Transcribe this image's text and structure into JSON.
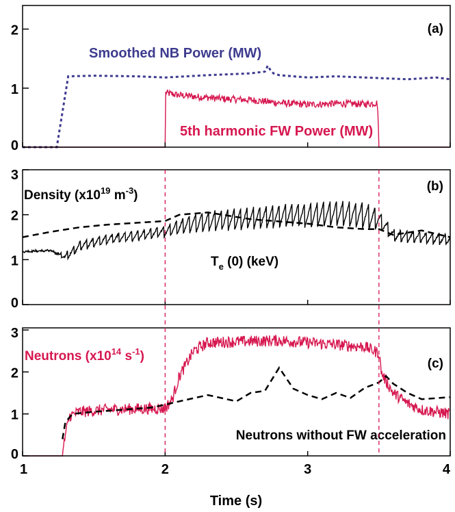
{
  "chart_data": {
    "type": "line",
    "shared_x": {
      "label": "Time (s)",
      "range": [
        1,
        4
      ],
      "ticks": [
        1,
        2,
        3,
        4
      ],
      "tick_labels": [
        "1",
        "2",
        "3",
        "4"
      ]
    },
    "panels": [
      {
        "id": "a",
        "tag": "(a)",
        "ylim": [
          0,
          2.4
        ],
        "yticks": [
          0,
          1,
          2
        ],
        "ytick_labels": [
          "0",
          "1",
          "2"
        ],
        "colors": {
          "nb": "#3d3b8e",
          "fw": "#d6174f"
        },
        "labels": {
          "nb": "Smoothed NB Power (MW)",
          "fw": "5th harmonic FW Power (MW)"
        },
        "series": [
          {
            "key": "nb",
            "style": "dotted",
            "x": [
              1.0,
              1.24,
              1.32,
              1.5,
              1.8,
              2.0,
              2.3,
              2.6,
              2.7,
              2.72,
              2.74,
              2.76,
              2.8,
              3.0,
              3.2,
              3.5,
              3.7,
              3.9,
              4.0
            ],
            "y": [
              0,
              0,
              1.2,
              1.21,
              1.2,
              1.18,
              1.22,
              1.25,
              1.28,
              1.38,
              1.3,
              1.25,
              1.22,
              1.18,
              1.2,
              1.17,
              1.15,
              1.18,
              1.15
            ]
          },
          {
            "key": "fw",
            "style": "noisy",
            "x": [
              1.0,
              2.0,
              2.001,
              2.1,
              2.2,
              2.4,
              2.6,
              2.8,
              3.0,
              3.2,
              3.4,
              3.49,
              3.5,
              4.0
            ],
            "y": [
              0,
              0,
              0.92,
              0.88,
              0.86,
              0.82,
              0.8,
              0.75,
              0.72,
              0.74,
              0.73,
              0.75,
              0,
              0
            ],
            "noise": 0.06
          }
        ]
      },
      {
        "id": "b",
        "tag": "(b)",
        "ylim": [
          0,
          3
        ],
        "yticks": [
          0,
          1,
          2,
          3
        ],
        "ytick_labels": [
          "0",
          "1",
          "2",
          "3"
        ],
        "labels": {
          "density_main": "Density (x10",
          "density_sup": "19",
          "density_unit": " m",
          "density_unit_sup": "-3",
          "density_close": ")",
          "te_main": "T",
          "te_sub": "e",
          "te_rest": " (0) (keV)"
        },
        "series": [
          {
            "key": "density",
            "style": "dashed",
            "x": [
              1.0,
              1.2,
              1.4,
              1.6,
              1.8,
              2.0,
              2.1,
              2.3,
              2.6,
              2.8,
              3.0,
              3.2,
              3.4,
              3.5,
              3.6,
              3.7,
              3.8,
              4.0
            ],
            "y": [
              1.5,
              1.62,
              1.72,
              1.78,
              1.82,
              1.86,
              2.0,
              2.05,
              1.9,
              1.85,
              1.8,
              1.72,
              1.68,
              1.68,
              1.55,
              1.6,
              1.65,
              1.5
            ]
          },
          {
            "key": "te",
            "style": "sawtooth",
            "base_x": [
              1.0,
              1.2,
              1.3,
              1.4,
              1.6,
              1.8,
              2.0,
              2.1,
              2.2,
              2.4,
              2.6,
              2.8,
              3.0,
              3.2,
              3.4,
              3.5,
              3.6,
              3.8,
              4.0
            ],
            "base_y": [
              1.18,
              1.2,
              1.05,
              1.3,
              1.45,
              1.52,
              1.62,
              1.72,
              1.8,
              1.86,
              1.9,
              1.95,
              2.0,
              2.05,
              2.0,
              1.9,
              1.55,
              1.5,
              1.45
            ],
            "amp_x": [
              1.0,
              1.25,
              1.3,
              2.0,
              2.2,
              3.0,
              3.45,
              3.5,
              3.6,
              4.0
            ],
            "amp_y": [
              0.02,
              0.03,
              0.2,
              0.25,
              0.45,
              0.55,
              0.6,
              0.4,
              0.28,
              0.25
            ],
            "period": 0.045
          }
        ]
      },
      {
        "id": "c",
        "tag": "(c)",
        "ylim": [
          0,
          3.05
        ],
        "yticks": [
          0,
          1,
          2,
          3
        ],
        "ytick_labels": [
          "0",
          "1",
          "2",
          "3"
        ],
        "colors": {
          "neutrons": "#d6174f"
        },
        "labels": {
          "neutrons_main": "Neutrons (x10",
          "neutrons_sup": "14",
          "neutrons_unit": " s",
          "neutrons_unit_sup": "-1",
          "neutrons_close": ")",
          "no_fw": "Neutrons without FW acceleration"
        },
        "series": [
          {
            "key": "neutrons",
            "style": "noisy",
            "x": [
              1.0,
              1.28,
              1.3,
              1.33,
              1.4,
              1.6,
              1.8,
              2.0,
              2.05,
              2.1,
              2.2,
              2.3,
              2.5,
              2.8,
              3.0,
              3.2,
              3.4,
              3.5,
              3.52,
              3.6,
              3.7,
              3.8,
              4.0
            ],
            "y": [
              0,
              0,
              0.5,
              0.95,
              1.05,
              1.1,
              1.12,
              1.13,
              1.35,
              1.9,
              2.5,
              2.7,
              2.72,
              2.75,
              2.7,
              2.65,
              2.6,
              2.45,
              1.95,
              1.5,
              1.25,
              1.1,
              1.0
            ],
            "noise": 0.14
          },
          {
            "key": "no_fw",
            "style": "dashed",
            "x": [
              1.28,
              1.3,
              1.35,
              1.5,
              1.7,
              1.9,
              2.0,
              2.1,
              2.3,
              2.5,
              2.6,
              2.7,
              2.8,
              2.9,
              3.0,
              3.1,
              3.2,
              3.3,
              3.4,
              3.5,
              3.55,
              3.6,
              3.7,
              3.8,
              4.0
            ],
            "y": [
              0.4,
              0.8,
              1.0,
              1.05,
              1.1,
              1.15,
              1.22,
              1.3,
              1.45,
              1.3,
              1.5,
              1.55,
              2.1,
              1.6,
              1.45,
              1.35,
              1.5,
              1.38,
              1.62,
              1.75,
              1.9,
              1.72,
              1.5,
              1.35,
              1.4
            ]
          }
        ]
      }
    ],
    "vertical_markers": {
      "x": [
        2.0,
        3.5
      ],
      "color": "#d6174f",
      "style": "dashed",
      "panels": [
        "b",
        "c"
      ]
    },
    "grid": false,
    "legend": "none"
  }
}
